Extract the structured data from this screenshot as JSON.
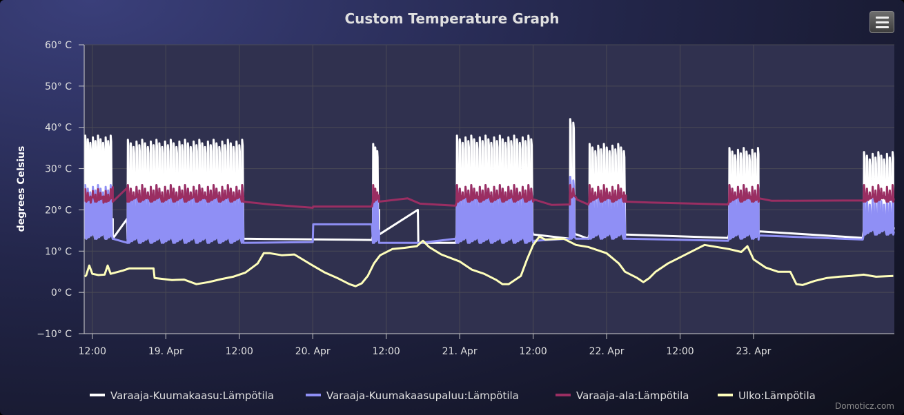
{
  "chart_data": {
    "type": "line",
    "title": "Custom Temperature Graph",
    "ylabel": "degrees Celsius",
    "ylim": [
      -10,
      60
    ],
    "y_ticks": [
      -10,
      0,
      10,
      20,
      30,
      40,
      50,
      60
    ],
    "y_tick_labels": [
      "−10° C",
      "0° C",
      "10° C",
      "20° C",
      "30° C",
      "40° C",
      "50° C",
      "60° C"
    ],
    "xlim": [
      "2024-04-18 10:40",
      "2024-04-23 23:00"
    ],
    "x_ticks": [
      "2024-04-18 12:00",
      "2024-04-19 00:00",
      "2024-04-19 12:00",
      "2024-04-20 00:00",
      "2024-04-20 12:00",
      "2024-04-21 00:00",
      "2024-04-21 12:00",
      "2024-04-22 00:00",
      "2024-04-22 12:00",
      "2024-04-23 00:00"
    ],
    "x_tick_labels": [
      "12:00",
      "19. Apr",
      "12:00",
      "20. Apr",
      "12:00",
      "21. Apr",
      "12:00",
      "22. Apr",
      "12:00",
      "23. Apr"
    ],
    "grid": true,
    "legend_position": "bottom",
    "series": [
      {
        "name": "Varaaja-Kuumakaasu:Lämpötila",
        "color": "#ffffff",
        "style": "cycling",
        "segments": [
          {
            "start": "2024-04-18 10:47",
            "end": "2024-04-18 15:20",
            "period_min": 25,
            "low": 13,
            "high": 38
          },
          {
            "start": "2024-04-18 17:45",
            "end": "2024-04-19 12:40",
            "period_min": 28,
            "low": 13,
            "high": 37
          },
          {
            "start": "2024-04-20 09:50",
            "end": "2024-04-20 10:50",
            "period_min": 20,
            "low": 14,
            "high": 36
          },
          {
            "start": "2024-04-20 23:30",
            "end": "2024-04-21 12:00",
            "period_min": 28,
            "low": 14,
            "high": 38
          },
          {
            "start": "2024-04-21 18:00",
            "end": "2024-04-21 19:00",
            "period_min": 30,
            "low": 14,
            "high": 42
          },
          {
            "start": "2024-04-21 21:10",
            "end": "2024-04-22 03:10",
            "period_min": 28,
            "low": 14,
            "high": 36
          },
          {
            "start": "2024-04-22 20:00",
            "end": "2024-04-23 00:50",
            "period_min": 28,
            "low": 14,
            "high": 35
          },
          {
            "start": "2024-04-23 18:00",
            "end": "2024-04-23 22:50",
            "period_min": 28,
            "low": 15,
            "high": 34
          }
        ],
        "idle": [
          [
            "2024-04-18 15:20",
            17.8
          ],
          [
            "2024-04-18 17:40",
            17.8
          ],
          [
            "2024-04-19 12:40",
            13.5
          ],
          [
            "2024-04-20 09:40",
            12.7
          ],
          [
            "2024-04-20 10:50",
            20
          ],
          [
            "2024-04-20 17:10",
            20
          ],
          [
            "2024-04-20 17:15",
            12
          ],
          [
            "2024-04-20 23:20",
            12
          ],
          [
            "2024-04-21 12:10",
            14
          ],
          [
            "2024-04-21 18:00",
            13
          ],
          [
            "2024-04-21 19:10",
            14
          ],
          [
            "2024-04-21 21:00",
            13
          ],
          [
            "2024-04-22 03:10",
            14
          ],
          [
            "2024-04-22 19:50",
            13.2
          ],
          [
            "2024-04-23 00:50",
            13.5
          ],
          [
            "2024-04-23 17:50",
            13.2
          ]
        ]
      },
      {
        "name": "Varaaja-Kuumakaasupaluu:Lämpötila",
        "color": "#8f8ff5",
        "style": "cycling",
        "segments": [
          {
            "start": "2024-04-18 10:47",
            "end": "2024-04-18 15:20",
            "period_min": 25,
            "low": 13,
            "high": 26
          },
          {
            "start": "2024-04-18 17:45",
            "end": "2024-04-19 12:40",
            "period_min": 28,
            "low": 12,
            "high": 26
          },
          {
            "start": "2024-04-20 09:50",
            "end": "2024-04-20 10:50",
            "period_min": 20,
            "low": 12,
            "high": 25
          },
          {
            "start": "2024-04-20 23:30",
            "end": "2024-04-21 12:00",
            "period_min": 28,
            "low": 12,
            "high": 26
          },
          {
            "start": "2024-04-21 18:00",
            "end": "2024-04-21 19:00",
            "period_min": 30,
            "low": 13,
            "high": 28
          },
          {
            "start": "2024-04-21 21:10",
            "end": "2024-04-22 03:10",
            "period_min": 28,
            "low": 13,
            "high": 25
          },
          {
            "start": "2024-04-22 20:00",
            "end": "2024-04-23 00:50",
            "period_min": 28,
            "low": 13,
            "high": 26
          },
          {
            "start": "2024-04-23 18:00",
            "end": "2024-04-23 22:50",
            "period_min": 28,
            "low": 14,
            "high": 23
          }
        ],
        "idle": [
          [
            "2024-04-19 12:40",
            13
          ],
          [
            "2024-04-20 00:00",
            12.2
          ],
          [
            "2024-04-20 00:05",
            16.5
          ],
          [
            "2024-04-20 09:40",
            16.5
          ],
          [
            "2024-04-20 10:50",
            15
          ],
          [
            "2024-04-20 17:40",
            12
          ],
          [
            "2024-04-20 23:20",
            13
          ],
          [
            "2024-04-21 12:10",
            12.5
          ],
          [
            "2024-04-21 18:00",
            13
          ],
          [
            "2024-04-21 21:00",
            13
          ],
          [
            "2024-04-22 03:10",
            13
          ],
          [
            "2024-04-22 19:50",
            12.5
          ],
          [
            "2024-04-23 00:50",
            12.8
          ],
          [
            "2024-04-23 17:50",
            12.8
          ]
        ]
      },
      {
        "name": "Varaaja-ala:Lämpötila",
        "color": "#9a2e62",
        "style": "cycling",
        "segments": [
          {
            "start": "2024-04-18 10:47",
            "end": "2024-04-18 15:20",
            "period_min": 25,
            "low": 22,
            "high": 25
          },
          {
            "start": "2024-04-18 17:45",
            "end": "2024-04-19 12:40",
            "period_min": 28,
            "low": 22,
            "high": 26
          },
          {
            "start": "2024-04-20 09:50",
            "end": "2024-04-20 10:50",
            "period_min": 20,
            "low": 22,
            "high": 26
          },
          {
            "start": "2024-04-20 23:30",
            "end": "2024-04-21 12:00",
            "period_min": 28,
            "low": 22,
            "high": 26
          },
          {
            "start": "2024-04-21 18:00",
            "end": "2024-04-21 19:00",
            "period_min": 30,
            "low": 23,
            "high": 26
          },
          {
            "start": "2024-04-21 21:10",
            "end": "2024-04-22 03:10",
            "period_min": 28,
            "low": 22,
            "high": 26
          },
          {
            "start": "2024-04-22 20:00",
            "end": "2024-04-23 00:50",
            "period_min": 28,
            "low": 22,
            "high": 26
          },
          {
            "start": "2024-04-23 18:00",
            "end": "2024-04-23 22:50",
            "period_min": 28,
            "low": 22,
            "high": 26
          }
        ],
        "idle": [
          [
            "2024-04-18 15:20",
            25.5
          ],
          [
            "2024-04-18 17:40",
            25.3
          ],
          [
            "2024-04-19 12:40",
            23
          ],
          [
            "2024-04-19 17:00",
            21.3
          ],
          [
            "2024-04-20 00:00",
            20.5
          ],
          [
            "2024-04-20 00:05",
            20.8
          ],
          [
            "2024-04-20 09:40",
            20.8
          ],
          [
            "2024-04-20 10:50",
            23.5
          ],
          [
            "2024-04-20 15:30",
            22.8
          ],
          [
            "2024-04-20 17:30",
            21.5
          ],
          [
            "2024-04-20 23:20",
            21
          ],
          [
            "2024-04-21 12:10",
            22.5
          ],
          [
            "2024-04-21 15:00",
            21.2
          ],
          [
            "2024-04-21 18:00",
            21.3
          ],
          [
            "2024-04-21 19:10",
            22.5
          ],
          [
            "2024-04-21 21:00",
            21.3
          ],
          [
            "2024-04-22 03:10",
            23.5
          ],
          [
            "2024-04-22 07:00",
            21.8
          ],
          [
            "2024-04-22 19:50",
            21.3
          ],
          [
            "2024-04-23 00:50",
            23
          ],
          [
            "2024-04-23 03:00",
            22.2
          ],
          [
            "2024-04-23 17:50",
            22.3
          ]
        ]
      },
      {
        "name": "Ulko:Lämpötila",
        "color": "#ffffbb",
        "style": "line",
        "points": [
          [
            "2024-04-18 10:47",
            3.8
          ],
          [
            "2024-04-18 11:00",
            4.2
          ],
          [
            "2024-04-18 11:30",
            6.5
          ],
          [
            "2024-04-18 12:00",
            4.5
          ],
          [
            "2024-04-18 13:00",
            4.2
          ],
          [
            "2024-04-18 14:00",
            4.3
          ],
          [
            "2024-04-18 14:30",
            6.5
          ],
          [
            "2024-04-18 15:00",
            4.5
          ],
          [
            "2024-04-18 17:00",
            5.3
          ],
          [
            "2024-04-18 18:00",
            5.8
          ],
          [
            "2024-04-18 21:00",
            5.8
          ],
          [
            "2024-04-18 22:00",
            5.8
          ],
          [
            "2024-04-18 22:10",
            3.5
          ],
          [
            "2024-04-19 01:00",
            3.0
          ],
          [
            "2024-04-19 03:00",
            3.1
          ],
          [
            "2024-04-19 05:00",
            2.0
          ],
          [
            "2024-04-19 07:00",
            2.5
          ],
          [
            "2024-04-19 09:00",
            3.2
          ],
          [
            "2024-04-19 11:00",
            3.8
          ],
          [
            "2024-04-19 13:00",
            4.8
          ],
          [
            "2024-04-19 15:00",
            7.0
          ],
          [
            "2024-04-19 16:00",
            9.5
          ],
          [
            "2024-04-19 17:00",
            9.5
          ],
          [
            "2024-04-19 19:00",
            9.0
          ],
          [
            "2024-04-19 21:00",
            9.2
          ],
          [
            "2024-04-20 00:00",
            6.5
          ],
          [
            "2024-04-20 02:00",
            4.8
          ],
          [
            "2024-04-20 04:00",
            3.5
          ],
          [
            "2024-04-20 06:00",
            2.0
          ],
          [
            "2024-04-20 07:00",
            1.5
          ],
          [
            "2024-04-20 08:00",
            2.2
          ],
          [
            "2024-04-20 09:00",
            4.0
          ],
          [
            "2024-04-20 10:00",
            7.0
          ],
          [
            "2024-04-20 11:00",
            9.0
          ],
          [
            "2024-04-20 13:00",
            10.5
          ],
          [
            "2024-04-20 15:00",
            10.8
          ],
          [
            "2024-04-20 17:00",
            11.2
          ],
          [
            "2024-04-20 18:00",
            12.5
          ],
          [
            "2024-04-20 19:00",
            11.0
          ],
          [
            "2024-04-20 21:00",
            9.2
          ],
          [
            "2024-04-21 00:00",
            7.5
          ],
          [
            "2024-04-21 02:00",
            5.5
          ],
          [
            "2024-04-21 04:00",
            4.5
          ],
          [
            "2024-04-21 06:00",
            3.0
          ],
          [
            "2024-04-21 07:00",
            2.0
          ],
          [
            "2024-04-21 08:00",
            2.0
          ],
          [
            "2024-04-21 10:00",
            4.0
          ],
          [
            "2024-04-21 11:00",
            8.0
          ],
          [
            "2024-04-21 12:00",
            11.5
          ],
          [
            "2024-04-21 13:00",
            13.5
          ],
          [
            "2024-04-21 14:00",
            12.8
          ],
          [
            "2024-04-21 17:00",
            13.0
          ],
          [
            "2024-04-21 19:00",
            11.5
          ],
          [
            "2024-04-21 21:00",
            11.0
          ],
          [
            "2024-04-22 00:00",
            9.5
          ],
          [
            "2024-04-22 02:00",
            7.0
          ],
          [
            "2024-04-22 03:00",
            5.0
          ],
          [
            "2024-04-22 05:00",
            3.5
          ],
          [
            "2024-04-22 06:00",
            2.5
          ],
          [
            "2024-04-22 07:00",
            3.5
          ],
          [
            "2024-04-22 08:00",
            5.0
          ],
          [
            "2024-04-22 10:00",
            7.0
          ],
          [
            "2024-04-22 12:00",
            8.5
          ],
          [
            "2024-04-22 14:00",
            10.0
          ],
          [
            "2024-04-22 16:00",
            11.5
          ],
          [
            "2024-04-22 18:00",
            11.0
          ],
          [
            "2024-04-22 20:00",
            10.5
          ],
          [
            "2024-04-22 22:00",
            9.8
          ],
          [
            "2024-04-22 23:00",
            11.2
          ],
          [
            "2024-04-23 00:00",
            8.0
          ],
          [
            "2024-04-23 02:00",
            6.0
          ],
          [
            "2024-04-23 04:00",
            5.0
          ],
          [
            "2024-04-23 06:00",
            5.0
          ],
          [
            "2024-04-23 07:00",
            2.0
          ],
          [
            "2024-04-23 08:00",
            1.8
          ],
          [
            "2024-04-23 10:00",
            2.8
          ],
          [
            "2024-04-23 12:00",
            3.5
          ],
          [
            "2024-04-23 14:00",
            3.8
          ],
          [
            "2024-04-23 16:00",
            4.0
          ],
          [
            "2024-04-23 18:00",
            4.3
          ],
          [
            "2024-04-23 20:00",
            3.8
          ],
          [
            "2024-04-23 22:50",
            4.0
          ]
        ]
      }
    ]
  },
  "credits": "Domoticz.com",
  "colors": {
    "plot_background": "#30314f",
    "grid": "#4a4a55",
    "axis_text": "#e0e0e0",
    "title_text": "#e0e0e0"
  },
  "menu_icon": "hamburger-menu-icon"
}
